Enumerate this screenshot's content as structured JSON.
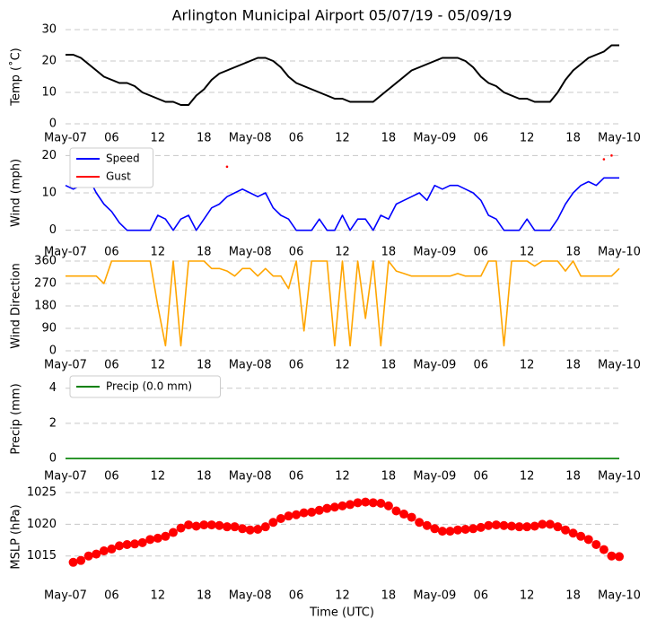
{
  "chart_data": [
    {
      "type": "line",
      "title": "Arlington Municipal Airport 05/07/19 - 05/09/19",
      "ylabel": "Temp (˚C)",
      "x": [
        0,
        1,
        2,
        3,
        4,
        5,
        6,
        7,
        8,
        9,
        10,
        11,
        12,
        13,
        14,
        15,
        16,
        17,
        18,
        19,
        20,
        21,
        22,
        23,
        24,
        25,
        26,
        27,
        28,
        29,
        30,
        31,
        32,
        33,
        34,
        35,
        36,
        37,
        38,
        39,
        40,
        41,
        42,
        43,
        44,
        45,
        46,
        47,
        48,
        49,
        50,
        51,
        52,
        53,
        54,
        55,
        56,
        57,
        58,
        59,
        60,
        61,
        62,
        63,
        64,
        65,
        66,
        67,
        68,
        69,
        70,
        71,
        72
      ],
      "xlim": [
        0,
        72
      ],
      "xticks": [
        {
          "value": 0,
          "label": "May-07"
        },
        {
          "value": 6,
          "label": "06"
        },
        {
          "value": 12,
          "label": "12"
        },
        {
          "value": 18,
          "label": "18"
        },
        {
          "value": 24,
          "label": "May-08"
        },
        {
          "value": 30,
          "label": "06"
        },
        {
          "value": 36,
          "label": "12"
        },
        {
          "value": 42,
          "label": "18"
        },
        {
          "value": 48,
          "label": "May-09"
        },
        {
          "value": 54,
          "label": "06"
        },
        {
          "value": 60,
          "label": "12"
        },
        {
          "value": 66,
          "label": "18"
        },
        {
          "value": 72,
          "label": "May-10"
        }
      ],
      "ylim": [
        0,
        30
      ],
      "yticks": [
        0,
        10,
        20,
        30
      ],
      "grid": true,
      "series": [
        {
          "name": "Temp",
          "color": "#000000",
          "values": [
            22,
            22,
            21,
            19,
            17,
            15,
            14,
            13,
            13,
            12,
            10,
            9,
            8,
            7,
            7,
            6,
            6,
            9,
            11,
            14,
            16,
            17,
            18,
            19,
            20,
            21,
            21,
            20,
            18,
            15,
            13,
            12,
            11,
            10,
            9,
            8,
            8,
            7,
            7,
            7,
            7,
            9,
            11,
            13,
            15,
            17,
            18,
            19,
            20,
            21,
            21,
            21,
            20,
            18,
            15,
            13,
            12,
            10,
            9,
            8,
            8,
            7,
            7,
            7,
            10,
            14,
            17,
            19,
            21,
            22,
            23,
            25,
            25
          ]
        }
      ]
    },
    {
      "type": "line",
      "ylabel": "Wind (mph)",
      "legend": "upper left",
      "x": [
        0,
        1,
        2,
        3,
        4,
        5,
        6,
        7,
        8,
        9,
        10,
        11,
        12,
        13,
        14,
        15,
        16,
        17,
        18,
        19,
        20,
        21,
        22,
        23,
        24,
        25,
        26,
        27,
        28,
        29,
        30,
        31,
        32,
        33,
        34,
        35,
        36,
        37,
        38,
        39,
        40,
        41,
        42,
        43,
        44,
        45,
        46,
        47,
        48,
        49,
        50,
        51,
        52,
        53,
        54,
        55,
        56,
        57,
        58,
        59,
        60,
        61,
        62,
        63,
        64,
        65,
        66,
        67,
        68,
        69,
        70,
        71,
        72
      ],
      "xlim": [
        0,
        72
      ],
      "xticks": [
        {
          "value": 0,
          "label": "May-07"
        },
        {
          "value": 6,
          "label": "06"
        },
        {
          "value": 12,
          "label": "12"
        },
        {
          "value": 18,
          "label": "18"
        },
        {
          "value": 24,
          "label": "May-08"
        },
        {
          "value": 30,
          "label": "06"
        },
        {
          "value": 36,
          "label": "12"
        },
        {
          "value": 42,
          "label": "18"
        },
        {
          "value": 48,
          "label": "May-09"
        },
        {
          "value": 54,
          "label": "06"
        },
        {
          "value": 60,
          "label": "12"
        },
        {
          "value": 66,
          "label": "18"
        },
        {
          "value": 72,
          "label": "May-10"
        }
      ],
      "ylim": [
        -2,
        22
      ],
      "yticks": [
        0,
        10,
        20
      ],
      "grid": true,
      "series": [
        {
          "name": "Speed",
          "color": "#0000ff",
          "values": [
            12,
            11,
            12,
            14,
            10,
            7,
            5,
            2,
            0,
            0,
            0,
            0,
            4,
            3,
            0,
            3,
            4,
            0,
            3,
            6,
            7,
            9,
            10,
            11,
            10,
            9,
            10,
            6,
            4,
            3,
            0,
            0,
            0,
            3,
            0,
            0,
            4,
            0,
            3,
            3,
            0,
            4,
            3,
            7,
            8,
            9,
            10,
            8,
            12,
            11,
            12,
            12,
            11,
            10,
            8,
            4,
            3,
            0,
            0,
            0,
            3,
            0,
            0,
            0,
            3,
            7,
            10,
            12,
            13,
            12,
            14,
            14,
            14
          ]
        },
        {
          "name": "Gust",
          "color": "#ff0000",
          "markers": true,
          "values": [
            null,
            null,
            null,
            null,
            null,
            null,
            null,
            null,
            null,
            null,
            null,
            null,
            null,
            null,
            null,
            null,
            null,
            null,
            null,
            null,
            null,
            17,
            null,
            null,
            null,
            null,
            null,
            null,
            null,
            null,
            null,
            null,
            null,
            null,
            null,
            null,
            null,
            null,
            null,
            null,
            null,
            null,
            null,
            null,
            null,
            null,
            null,
            null,
            null,
            null,
            null,
            null,
            null,
            null,
            null,
            null,
            null,
            null,
            null,
            null,
            null,
            null,
            null,
            null,
            null,
            null,
            null,
            null,
            null,
            null,
            19,
            20,
            null
          ]
        }
      ]
    },
    {
      "type": "line",
      "ylabel": "Wind Direction",
      "x": [
        0,
        1,
        2,
        3,
        4,
        5,
        6,
        7,
        8,
        9,
        10,
        11,
        12,
        13,
        14,
        15,
        16,
        17,
        18,
        19,
        20,
        21,
        22,
        23,
        24,
        25,
        26,
        27,
        28,
        29,
        30,
        31,
        32,
        33,
        34,
        35,
        36,
        37,
        38,
        39,
        40,
        41,
        42,
        43,
        44,
        45,
        46,
        47,
        48,
        49,
        50,
        51,
        52,
        53,
        54,
        55,
        56,
        57,
        58,
        59,
        60,
        61,
        62,
        63,
        64,
        65,
        66,
        67,
        68,
        69,
        70,
        71,
        72
      ],
      "xlim": [
        0,
        72
      ],
      "xticks": [
        {
          "value": 0,
          "label": "May-07"
        },
        {
          "value": 6,
          "label": "06"
        },
        {
          "value": 12,
          "label": "12"
        },
        {
          "value": 18,
          "label": "18"
        },
        {
          "value": 24,
          "label": "May-08"
        },
        {
          "value": 30,
          "label": "06"
        },
        {
          "value": 36,
          "label": "12"
        },
        {
          "value": 42,
          "label": "18"
        },
        {
          "value": 48,
          "label": "May-09"
        },
        {
          "value": 54,
          "label": "06"
        },
        {
          "value": 60,
          "label": "12"
        },
        {
          "value": 66,
          "label": "18"
        },
        {
          "value": 72,
          "label": "May-10"
        }
      ],
      "ylim": [
        0,
        360
      ],
      "yticks": [
        0,
        90,
        180,
        270,
        360
      ],
      "grid": true,
      "series": [
        {
          "name": "Direction",
          "color": "#ffa500",
          "values": [
            300,
            300,
            300,
            300,
            300,
            270,
            360,
            360,
            360,
            360,
            360,
            360,
            180,
            20,
            360,
            20,
            360,
            360,
            360,
            330,
            330,
            320,
            300,
            330,
            330,
            300,
            330,
            300,
            300,
            250,
            360,
            80,
            360,
            360,
            360,
            20,
            360,
            20,
            360,
            130,
            360,
            20,
            360,
            320,
            310,
            300,
            300,
            300,
            300,
            300,
            300,
            310,
            300,
            300,
            300,
            360,
            360,
            20,
            360,
            360,
            360,
            340,
            360,
            360,
            360,
            320,
            360,
            300,
            300,
            300,
            300,
            300,
            330
          ]
        }
      ]
    },
    {
      "type": "line",
      "ylabel": "Precip (mm)",
      "legend": "upper left",
      "x": [
        0,
        1,
        2,
        3,
        4,
        5,
        6,
        7,
        8,
        9,
        10,
        11,
        12,
        13,
        14,
        15,
        16,
        17,
        18,
        19,
        20,
        21,
        22,
        23,
        24,
        25,
        26,
        27,
        28,
        29,
        30,
        31,
        32,
        33,
        34,
        35,
        36,
        37,
        38,
        39,
        40,
        41,
        42,
        43,
        44,
        45,
        46,
        47,
        48,
        49,
        50,
        51,
        52,
        53,
        54,
        55,
        56,
        57,
        58,
        59,
        60,
        61,
        62,
        63,
        64,
        65,
        66,
        67,
        68,
        69,
        70,
        71,
        72
      ],
      "xlim": [
        0,
        72
      ],
      "xticks": [
        {
          "value": 0,
          "label": "May-07"
        },
        {
          "value": 6,
          "label": "06"
        },
        {
          "value": 12,
          "label": "12"
        },
        {
          "value": 18,
          "label": "18"
        },
        {
          "value": 24,
          "label": "May-08"
        },
        {
          "value": 30,
          "label": "06"
        },
        {
          "value": 36,
          "label": "12"
        },
        {
          "value": 42,
          "label": "18"
        },
        {
          "value": 48,
          "label": "May-09"
        },
        {
          "value": 54,
          "label": "06"
        },
        {
          "value": 60,
          "label": "12"
        },
        {
          "value": 66,
          "label": "18"
        },
        {
          "value": 72,
          "label": "May-10"
        }
      ],
      "ylim": [
        -0.2,
        4.7
      ],
      "yticks": [
        0,
        2,
        4
      ],
      "grid": true,
      "series": [
        {
          "name": "Precip (0.0 mm)",
          "color": "#008000",
          "values": [
            0,
            0,
            0,
            0,
            0,
            0,
            0,
            0,
            0,
            0,
            0,
            0,
            0,
            0,
            0,
            0,
            0,
            0,
            0,
            0,
            0,
            0,
            0,
            0,
            0,
            0,
            0,
            0,
            0,
            0,
            0,
            0,
            0,
            0,
            0,
            0,
            0,
            0,
            0,
            0,
            0,
            0,
            0,
            0,
            0,
            0,
            0,
            0,
            0,
            0,
            0,
            0,
            0,
            0,
            0,
            0,
            0,
            0,
            0,
            0,
            0,
            0,
            0,
            0,
            0,
            0,
            0,
            0,
            0,
            0,
            0,
            0,
            0
          ]
        }
      ]
    },
    {
      "type": "scatter",
      "ylabel": "MSLP (hPa)",
      "xlabel": "Time (UTC)",
      "x": [
        1,
        2,
        3,
        4,
        5,
        6,
        7,
        8,
        9,
        10,
        11,
        12,
        13,
        14,
        15,
        16,
        17,
        18,
        19,
        20,
        21,
        22,
        23,
        24,
        25,
        26,
        27,
        28,
        29,
        30,
        31,
        32,
        33,
        34,
        35,
        36,
        37,
        38,
        39,
        40,
        41,
        42,
        43,
        44,
        45,
        46,
        47,
        48,
        49,
        50,
        51,
        52,
        53,
        54,
        55,
        56,
        57,
        58,
        59,
        60,
        61,
        62,
        63,
        64,
        65,
        66,
        67,
        68,
        69,
        70,
        71,
        72
      ],
      "xlim": [
        0,
        72
      ],
      "xticks": [
        {
          "value": 0,
          "label": "May-07"
        },
        {
          "value": 6,
          "label": "06"
        },
        {
          "value": 12,
          "label": "12"
        },
        {
          "value": 18,
          "label": "18"
        },
        {
          "value": 24,
          "label": "May-08"
        },
        {
          "value": 30,
          "label": "06"
        },
        {
          "value": 36,
          "label": "12"
        },
        {
          "value": 42,
          "label": "18"
        },
        {
          "value": 48,
          "label": "May-09"
        },
        {
          "value": 54,
          "label": "06"
        },
        {
          "value": 60,
          "label": "12"
        },
        {
          "value": 66,
          "label": "18"
        },
        {
          "value": 72,
          "label": "May-10"
        }
      ],
      "ylim": [
        1011,
        1025
      ],
      "yticks": [
        1015,
        1020,
        1025
      ],
      "grid": true,
      "series": [
        {
          "name": "MSLP",
          "color": "#ff0000",
          "values": [
            1014.0,
            1014.3,
            1015.0,
            1015.3,
            1015.8,
            1016.1,
            1016.6,
            1016.8,
            1016.9,
            1017.1,
            1017.6,
            1017.8,
            1018.1,
            1018.7,
            1019.4,
            1019.9,
            1019.7,
            1019.9,
            1019.9,
            1019.8,
            1019.6,
            1019.6,
            1019.3,
            1019.1,
            1019.2,
            1019.6,
            1020.3,
            1020.9,
            1021.3,
            1021.5,
            1021.8,
            1021.9,
            1022.2,
            1022.5,
            1022.7,
            1022.9,
            1023.1,
            1023.4,
            1023.5,
            1023.4,
            1023.3,
            1022.9,
            1022.1,
            1021.6,
            1021.1,
            1020.3,
            1019.8,
            1019.3,
            1018.9,
            1018.9,
            1019.1,
            1019.2,
            1019.3,
            1019.5,
            1019.8,
            1019.9,
            1019.8,
            1019.7,
            1019.6,
            1019.6,
            1019.7,
            1020.0,
            1020.0,
            1019.6,
            1019.1,
            1018.6,
            1018.1,
            1017.6,
            1016.8,
            1016.0,
            1015.0,
            1014.9
          ]
        }
      ]
    }
  ]
}
